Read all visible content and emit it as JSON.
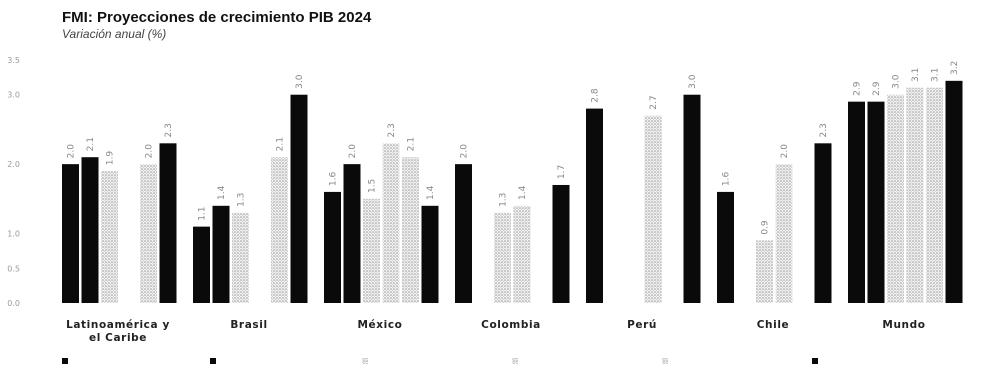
{
  "chart_data": {
    "type": "bar",
    "title": "FMI: Proyecciones de crecimiento PIB 2024",
    "subtitle": "Variación anual (%)",
    "ylim": [
      0,
      3.5
    ],
    "yticks": [
      {
        "v": 0,
        "label": "0.0"
      },
      {
        "v": 0.5,
        "label": "0.5"
      },
      {
        "v": 1,
        "label": "1.0"
      },
      {
        "v": 2,
        "label": "2.0"
      },
      {
        "v": 3,
        "label": "3.0"
      },
      {
        "v": 3.5,
        "label": "3.5"
      }
    ],
    "categories": [
      [
        "Latinoamérica y",
        "el Caribe"
      ],
      [
        "Brasil"
      ],
      [
        "México"
      ],
      [
        "Colombia"
      ],
      [
        "Perú"
      ],
      [
        "Chile"
      ],
      [
        "Mundo"
      ]
    ],
    "series": [
      {
        "name": "",
        "color": "#0a0a0a",
        "pattern": "solid",
        "values": [
          2.0,
          1.1,
          1.6,
          2.0,
          2.8,
          1.6,
          2.9
        ]
      },
      {
        "name": "",
        "color": "#0a0a0a",
        "pattern": "solid",
        "values": [
          2.1,
          1.4,
          2.0,
          null,
          null,
          null,
          2.9
        ]
      },
      {
        "name": "",
        "color": "#c9c9c9",
        "pattern": "dots",
        "values": [
          1.9,
          1.3,
          1.5,
          1.3,
          null,
          0.9,
          3.0
        ]
      },
      {
        "name": "",
        "color": "#d6d6d6",
        "pattern": "dots",
        "values": [
          null,
          null,
          2.3,
          1.4,
          2.7,
          2.0,
          3.1
        ]
      },
      {
        "name": "",
        "color": "#dedede",
        "pattern": "dots",
        "values": [
          2.0,
          2.1,
          2.1,
          null,
          null,
          null,
          3.1
        ]
      },
      {
        "name": "",
        "color": "#0a0a0a",
        "pattern": "solid",
        "values": [
          2.3,
          3.0,
          1.4,
          1.7,
          3.0,
          2.3,
          3.2
        ]
      }
    ],
    "data_labels": [
      [
        "2.0",
        "2.1",
        "1.9",
        "",
        "2.0",
        "2.3"
      ],
      [
        "1.1",
        "1.4",
        "1.3",
        "",
        "2.1",
        "3.0"
      ],
      [
        "1.6",
        "2.0",
        "1.5",
        "2.3",
        "2.1",
        "1.4"
      ],
      [
        "2.0",
        "",
        "1.3",
        "1.4",
        "",
        "1.7"
      ],
      [
        "2.8",
        "",
        "",
        "2.7",
        "",
        "3.0"
      ],
      [
        "1.6",
        "",
        "0.9",
        "2.0",
        "",
        "2.3"
      ],
      [
        "2.9",
        "2.9",
        "3.0",
        "3.1",
        "3.1",
        "3.2"
      ]
    ],
    "grid": false,
    "legend_position": "bottom"
  }
}
